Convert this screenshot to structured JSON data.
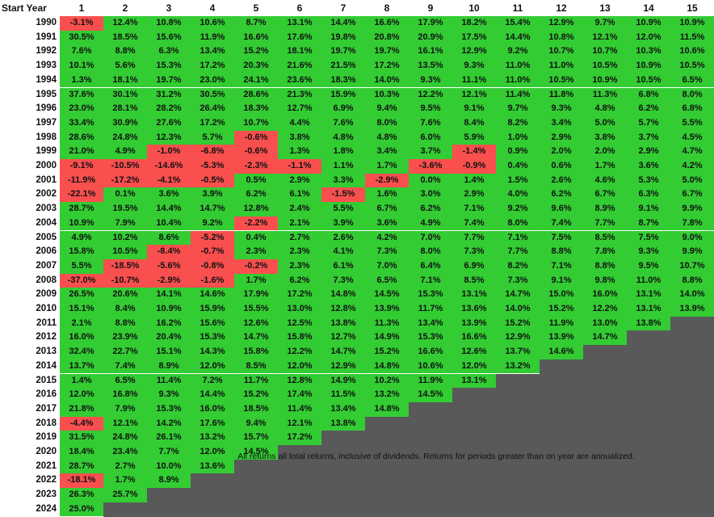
{
  "header": {
    "start_year_label": "Start Year"
  },
  "footnote": "All returns all total returns, inclusive of dividends. Returns for periods greater than on year are annualized.",
  "colors": {
    "positive": "#33cc33",
    "negative": "#f94f4f",
    "empty": "#595959",
    "background": "#ffffff"
  },
  "chart_data": {
    "type": "table",
    "columns": [
      "1",
      "2",
      "3",
      "4",
      "5",
      "6",
      "7",
      "8",
      "9",
      "10",
      "11",
      "12",
      "13",
      "14",
      "15"
    ],
    "rows": [
      {
        "year": "1990",
        "values": [
          "-3.1%",
          "12.4%",
          "10.8%",
          "10.6%",
          "8.7%",
          "13.1%",
          "14.4%",
          "16.6%",
          "17.9%",
          "18.2%",
          "15.4%",
          "12.9%",
          "9.7%",
          "10.9%",
          "10.9%"
        ]
      },
      {
        "year": "1991",
        "values": [
          "30.5%",
          "18.5%",
          "15.6%",
          "11.9%",
          "16.6%",
          "17.6%",
          "19.8%",
          "20.8%",
          "20.9%",
          "17.5%",
          "14.4%",
          "10.8%",
          "12.1%",
          "12.0%",
          "11.5%"
        ]
      },
      {
        "year": "1992",
        "values": [
          "7.6%",
          "8.8%",
          "6.3%",
          "13.4%",
          "15.2%",
          "18.1%",
          "19.7%",
          "19.7%",
          "16.1%",
          "12.9%",
          "9.2%",
          "10.7%",
          "10.7%",
          "10.3%",
          "10.6%"
        ]
      },
      {
        "year": "1993",
        "values": [
          "10.1%",
          "5.6%",
          "15.3%",
          "17.2%",
          "20.3%",
          "21.6%",
          "21.5%",
          "17.2%",
          "13.5%",
          "9.3%",
          "11.0%",
          "11.0%",
          "10.5%",
          "10.9%",
          "10.5%"
        ]
      },
      {
        "year": "1994",
        "values": [
          "1.3%",
          "18.1%",
          "19.7%",
          "23.0%",
          "24.1%",
          "23.6%",
          "18.3%",
          "14.0%",
          "9.3%",
          "11.1%",
          "11.0%",
          "10.5%",
          "10.9%",
          "10.5%",
          "6.5%"
        ]
      },
      {
        "year": "1995",
        "values": [
          "37.6%",
          "30.1%",
          "31.2%",
          "30.5%",
          "28.6%",
          "21.3%",
          "15.9%",
          "10.3%",
          "12.2%",
          "12.1%",
          "11.4%",
          "11.8%",
          "11.3%",
          "6.8%",
          "8.0%"
        ]
      },
      {
        "year": "1996",
        "values": [
          "23.0%",
          "28.1%",
          "28.2%",
          "26.4%",
          "18.3%",
          "12.7%",
          "6.9%",
          "9.4%",
          "9.5%",
          "9.1%",
          "9.7%",
          "9.3%",
          "4.8%",
          "6.2%",
          "6.8%"
        ]
      },
      {
        "year": "1997",
        "values": [
          "33.4%",
          "30.9%",
          "27.6%",
          "17.2%",
          "10.7%",
          "4.4%",
          "7.6%",
          "8.0%",
          "7.6%",
          "8.4%",
          "8.2%",
          "3.4%",
          "5.0%",
          "5.7%",
          "5.5%"
        ]
      },
      {
        "year": "1998",
        "values": [
          "28.6%",
          "24.8%",
          "12.3%",
          "5.7%",
          "-0.6%",
          "3.8%",
          "4.8%",
          "4.8%",
          "6.0%",
          "5.9%",
          "1.0%",
          "2.9%",
          "3.8%",
          "3.7%",
          "4.5%"
        ]
      },
      {
        "year": "1999",
        "values": [
          "21.0%",
          "4.9%",
          "-1.0%",
          "-6.8%",
          "-0.6%",
          "1.3%",
          "1.8%",
          "3.4%",
          "3.7%",
          "-1.4%",
          "0.9%",
          "2.0%",
          "2.0%",
          "2.9%",
          "4.7%"
        ]
      },
      {
        "year": "2000",
        "values": [
          "-9.1%",
          "-10.5%",
          "-14.6%",
          "-5.3%",
          "-2.3%",
          "-1.1%",
          "1.1%",
          "1.7%",
          "-3.6%",
          "-0.9%",
          "0.4%",
          "0.6%",
          "1.7%",
          "3.6%",
          "4.2%"
        ]
      },
      {
        "year": "2001",
        "values": [
          "-11.9%",
          "-17.2%",
          "-4.1%",
          "-0.5%",
          "0.5%",
          "2.9%",
          "3.3%",
          "-2.9%",
          "0.0%",
          "1.4%",
          "1.5%",
          "2.6%",
          "4.6%",
          "5.3%",
          "5.0%"
        ]
      },
      {
        "year": "2002",
        "values": [
          "-22.1%",
          "0.1%",
          "3.6%",
          "3.9%",
          "6.2%",
          "6.1%",
          "-1.5%",
          "1.6%",
          "3.0%",
          "2.9%",
          "4.0%",
          "6.2%",
          "6.7%",
          "6.3%",
          "6.7%"
        ]
      },
      {
        "year": "2003",
        "values": [
          "28.7%",
          "19.5%",
          "14.4%",
          "14.7%",
          "12.8%",
          "2.4%",
          "5.5%",
          "6.7%",
          "6.2%",
          "7.1%",
          "9.2%",
          "9.6%",
          "8.9%",
          "9.1%",
          "9.9%"
        ]
      },
      {
        "year": "2004",
        "values": [
          "10.9%",
          "7.9%",
          "10.4%",
          "9.2%",
          "-2.2%",
          "2.1%",
          "3.9%",
          "3.6%",
          "4.9%",
          "7.4%",
          "8.0%",
          "7.4%",
          "7.7%",
          "8.7%",
          "7.8%"
        ]
      },
      {
        "year": "2005",
        "values": [
          "4.9%",
          "10.2%",
          "8.6%",
          "-5.2%",
          "0.4%",
          "2.7%",
          "2.6%",
          "4.2%",
          "7.0%",
          "7.7%",
          "7.1%",
          "7.5%",
          "8.5%",
          "7.5%",
          "9.0%"
        ]
      },
      {
        "year": "2006",
        "values": [
          "15.8%",
          "10.5%",
          "-8.4%",
          "-0.7%",
          "2.3%",
          "2.3%",
          "4.1%",
          "7.3%",
          "8.0%",
          "7.3%",
          "7.7%",
          "8.8%",
          "7.8%",
          "9.3%",
          "9.9%"
        ]
      },
      {
        "year": "2007",
        "values": [
          "5.5%",
          "-18.5%",
          "-5.6%",
          "-0.8%",
          "-0.2%",
          "2.3%",
          "6.1%",
          "7.0%",
          "6.4%",
          "6.9%",
          "8.2%",
          "7.1%",
          "8.8%",
          "9.5%",
          "10.7%"
        ]
      },
      {
        "year": "2008",
        "values": [
          "-37.0%",
          "-10.7%",
          "-2.9%",
          "-1.6%",
          "1.7%",
          "6.2%",
          "7.3%",
          "6.5%",
          "7.1%",
          "8.5%",
          "7.3%",
          "9.1%",
          "9.8%",
          "11.0%",
          "8.8%"
        ]
      },
      {
        "year": "2009",
        "values": [
          "26.5%",
          "20.6%",
          "14.1%",
          "14.6%",
          "17.9%",
          "17.2%",
          "14.8%",
          "14.5%",
          "15.3%",
          "13.1%",
          "14.7%",
          "15.0%",
          "16.0%",
          "13.1%",
          "14.0%"
        ]
      },
      {
        "year": "2010",
        "values": [
          "15.1%",
          "8.4%",
          "10.9%",
          "15.9%",
          "15.5%",
          "13.0%",
          "12.8%",
          "13.9%",
          "11.7%",
          "13.6%",
          "14.0%",
          "15.2%",
          "12.2%",
          "13.1%",
          "13.9%"
        ]
      },
      {
        "year": "2011",
        "values": [
          "2.1%",
          "8.8%",
          "16.2%",
          "15.6%",
          "12.6%",
          "12.5%",
          "13.8%",
          "11.3%",
          "13.4%",
          "13.9%",
          "15.2%",
          "11.9%",
          "13.0%",
          "13.8%"
        ]
      },
      {
        "year": "2012",
        "values": [
          "16.0%",
          "23.9%",
          "20.4%",
          "15.3%",
          "14.7%",
          "15.8%",
          "12.7%",
          "14.9%",
          "15.3%",
          "16.6%",
          "12.9%",
          "13.9%",
          "14.7%"
        ]
      },
      {
        "year": "2013",
        "values": [
          "32.4%",
          "22.7%",
          "15.1%",
          "14.3%",
          "15.8%",
          "12.2%",
          "14.7%",
          "15.2%",
          "16.6%",
          "12.6%",
          "13.7%",
          "14.6%"
        ]
      },
      {
        "year": "2014",
        "values": [
          "13.7%",
          "7.4%",
          "8.9%",
          "12.0%",
          "8.5%",
          "12.0%",
          "12.9%",
          "14.8%",
          "10.6%",
          "12.0%",
          "13.2%"
        ]
      },
      {
        "year": "2015",
        "values": [
          "1.4%",
          "6.5%",
          "11.4%",
          "7.2%",
          "11.7%",
          "12.8%",
          "14.9%",
          "10.2%",
          "11.9%",
          "13.1%"
        ]
      },
      {
        "year": "2016",
        "values": [
          "12.0%",
          "16.8%",
          "9.3%",
          "14.4%",
          "15.2%",
          "17.4%",
          "11.5%",
          "13.2%",
          "14.5%"
        ]
      },
      {
        "year": "2017",
        "values": [
          "21.8%",
          "7.9%",
          "15.3%",
          "16.0%",
          "18.5%",
          "11.4%",
          "13.4%",
          "14.8%"
        ]
      },
      {
        "year": "2018",
        "values": [
          "-4.4%",
          "12.1%",
          "14.2%",
          "17.6%",
          "9.4%",
          "12.1%",
          "13.8%"
        ]
      },
      {
        "year": "2019",
        "values": [
          "31.5%",
          "24.8%",
          "26.1%",
          "13.2%",
          "15.7%",
          "17.2%"
        ]
      },
      {
        "year": "2020",
        "values": [
          "18.4%",
          "23.4%",
          "7.7%",
          "12.0%",
          "14.5%"
        ]
      },
      {
        "year": "2021",
        "values": [
          "28.7%",
          "2.7%",
          "10.0%",
          "13.6%"
        ]
      },
      {
        "year": "2022",
        "values": [
          "-18.1%",
          "1.7%",
          "8.9%"
        ]
      },
      {
        "year": "2023",
        "values": [
          "26.3%",
          "25.7%"
        ]
      },
      {
        "year": "2024",
        "values": [
          "25.0%"
        ]
      }
    ]
  }
}
